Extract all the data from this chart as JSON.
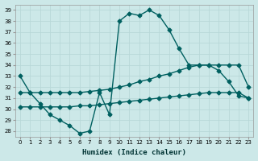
{
  "xlabel": "Humidex (Indice chaleur)",
  "background_color": "#cce8e8",
  "grid_color": "#b8d8d8",
  "line_color": "#006060",
  "xlim": [
    -0.5,
    23.5
  ],
  "ylim": [
    27.5,
    39.5
  ],
  "yticks": [
    28,
    29,
    30,
    31,
    32,
    33,
    34,
    35,
    36,
    37,
    38,
    39
  ],
  "xticks": [
    0,
    1,
    2,
    3,
    4,
    5,
    6,
    7,
    8,
    9,
    10,
    11,
    12,
    13,
    14,
    15,
    16,
    17,
    18,
    19,
    20,
    21,
    22,
    23
  ],
  "series": [
    {
      "x": [
        0,
        1,
        2,
        3,
        4,
        5,
        6,
        7,
        8,
        9,
        10,
        11,
        12,
        13,
        14,
        15,
        16,
        17,
        18,
        19,
        20,
        21,
        22,
        23
      ],
      "y": [
        33,
        31.5,
        30.5,
        29.5,
        29.0,
        28.5,
        27.8,
        28.0,
        31.5,
        29.5,
        38.0,
        38.7,
        38.5,
        39.0,
        38.5,
        37.2,
        35.5,
        34.0,
        34.0,
        34.0,
        33.5,
        32.5,
        31.2,
        31.0
      ]
    },
    {
      "x": [
        0,
        1,
        2,
        3,
        4,
        5,
        6,
        7,
        8,
        9,
        10,
        11,
        12,
        13,
        14,
        15,
        16,
        17,
        18,
        19,
        20,
        21,
        22,
        23
      ],
      "y": [
        31.5,
        31.5,
        31.5,
        31.5,
        31.5,
        31.5,
        31.5,
        31.6,
        31.7,
        31.8,
        32.0,
        32.2,
        32.5,
        32.7,
        33.0,
        33.2,
        33.5,
        33.8,
        34.0,
        34.0,
        34.0,
        34.0,
        34.0,
        32.0
      ]
    },
    {
      "x": [
        0,
        1,
        2,
        3,
        4,
        5,
        6,
        7,
        8,
        9,
        10,
        11,
        12,
        13,
        14,
        15,
        16,
        17,
        18,
        19,
        20,
        21,
        22,
        23
      ],
      "y": [
        30.2,
        30.2,
        30.2,
        30.2,
        30.2,
        30.2,
        30.3,
        30.3,
        30.4,
        30.5,
        30.6,
        30.7,
        30.8,
        30.9,
        31.0,
        31.1,
        31.2,
        31.3,
        31.4,
        31.5,
        31.5,
        31.5,
        31.5,
        31.0
      ]
    }
  ]
}
